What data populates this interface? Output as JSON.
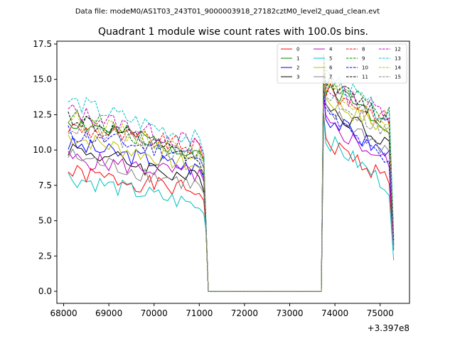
{
  "chart_data": {
    "type": "line",
    "suptitle": "Data file: modeM0/AS1T03_243T01_9000003918_27182cztM0_level2_quad_clean.evt",
    "title": "Quadrant 1 module wise count rates with 100.0s bins.",
    "xlabel": "",
    "ylabel": "",
    "x_offset_label": "+3.397e8",
    "xlim": [
      67850,
      75650
    ],
    "ylim": [
      -0.85,
      17.7
    ],
    "x_ticks": [
      68000,
      69000,
      70000,
      71000,
      72000,
      73000,
      74000,
      75000
    ],
    "x_tick_labels": [
      "68000",
      "69000",
      "70000",
      "71000",
      "72000",
      "73000",
      "74000",
      "75000"
    ],
    "y_ticks": [
      0.0,
      2.5,
      5.0,
      7.5,
      10.0,
      12.5,
      15.0,
      17.5
    ],
    "y_tick_labels": [
      "0.0",
      "2.5",
      "5.0",
      "7.5",
      "10.0",
      "12.5",
      "15.0",
      "17.5"
    ],
    "legend_position": "top-right",
    "segments": {
      "a_start": 68100,
      "a_end": 71100,
      "drop_x": 71150,
      "gap_start": 71200,
      "gap_end": 73700,
      "b_start": 73800,
      "b_end": 75200,
      "b_drop_x": 75300,
      "step": 100
    },
    "series": [
      {
        "name": "0",
        "color": "#ff0000",
        "dash": "solid",
        "a_level": [
          8.4,
          7.0
        ],
        "b_level": [
          10.6,
          7.9
        ],
        "low_end": 3.0,
        "seed": 1
      },
      {
        "name": "1",
        "color": "#008000",
        "dash": "solid",
        "a_level": [
          12.1,
          9.8
        ],
        "b_level": [
          14.6,
          11.8
        ],
        "low_end": 3.3,
        "seed": 2
      },
      {
        "name": "2",
        "color": "#0000ff",
        "dash": "solid",
        "a_level": [
          10.4,
          8.6
        ],
        "b_level": [
          12.4,
          9.6
        ],
        "low_end": 3.5,
        "seed": 3
      },
      {
        "name": "3",
        "color": "#000000",
        "dash": "solid",
        "a_level": [
          10.2,
          7.8
        ],
        "b_level": [
          13.1,
          10.6
        ],
        "low_end": 3.2,
        "seed": 4
      },
      {
        "name": "4",
        "color": "#bf00bf",
        "dash": "solid",
        "a_level": [
          9.4,
          8.2
        ],
        "b_level": [
          11.9,
          9.1
        ],
        "low_end": 2.9,
        "seed": 5
      },
      {
        "name": "5",
        "color": "#00bfbf",
        "dash": "solid",
        "a_level": [
          8.1,
          6.0
        ],
        "b_level": [
          10.8,
          7.4
        ],
        "low_end": 2.2,
        "seed": 6
      },
      {
        "name": "6",
        "color": "#bfbf00",
        "dash": "solid",
        "a_level": [
          11.0,
          8.7
        ],
        "b_level": [
          13.6,
          11.3
        ],
        "low_end": 3.4,
        "seed": 7
      },
      {
        "name": "7",
        "color": "#808080",
        "dash": "solid",
        "a_level": [
          9.6,
          7.4
        ],
        "b_level": [
          12.8,
          9.9
        ],
        "low_end": 3.0,
        "seed": 8
      },
      {
        "name": "8",
        "color": "#ff0000",
        "dash": "dashed",
        "a_level": [
          11.6,
          10.1
        ],
        "b_level": [
          14.2,
          12.1
        ],
        "low_end": 3.7,
        "seed": 9
      },
      {
        "name": "9",
        "color": "#008000",
        "dash": "dashed",
        "a_level": [
          12.5,
          9.6
        ],
        "b_level": [
          14.8,
          12.4
        ],
        "low_end": 3.9,
        "seed": 10
      },
      {
        "name": "10",
        "color": "#0000ff",
        "dash": "dashed",
        "a_level": [
          11.2,
          9.5
        ],
        "b_level": [
          12.6,
          8.9
        ],
        "low_end": 3.3,
        "seed": 11
      },
      {
        "name": "11",
        "color": "#000000",
        "dash": "dashed",
        "a_level": [
          12.4,
          9.1
        ],
        "b_level": [
          14.9,
          12.0
        ],
        "low_end": 3.6,
        "seed": 12
      },
      {
        "name": "12",
        "color": "#bf00bf",
        "dash": "dashed",
        "a_level": [
          12.8,
          10.3
        ],
        "b_level": [
          14.4,
          12.6
        ],
        "low_end": 3.8,
        "seed": 13
      },
      {
        "name": "13",
        "color": "#00bfbf",
        "dash": "dashed",
        "a_level": [
          13.5,
          10.6
        ],
        "b_level": [
          15.4,
          12.2
        ],
        "low_end": 4.0,
        "seed": 14
      },
      {
        "name": "14",
        "color": "#bfbf00",
        "dash": "dashed",
        "a_level": [
          12.3,
          9.7
        ],
        "b_level": [
          14.7,
          11.5
        ],
        "low_end": 3.5,
        "seed": 15
      },
      {
        "name": "15",
        "color": "#808080",
        "dash": "dashed",
        "a_level": [
          11.7,
          9.3
        ],
        "b_level": [
          14.0,
          11.1
        ],
        "low_end": 3.1,
        "seed": 16
      }
    ]
  }
}
